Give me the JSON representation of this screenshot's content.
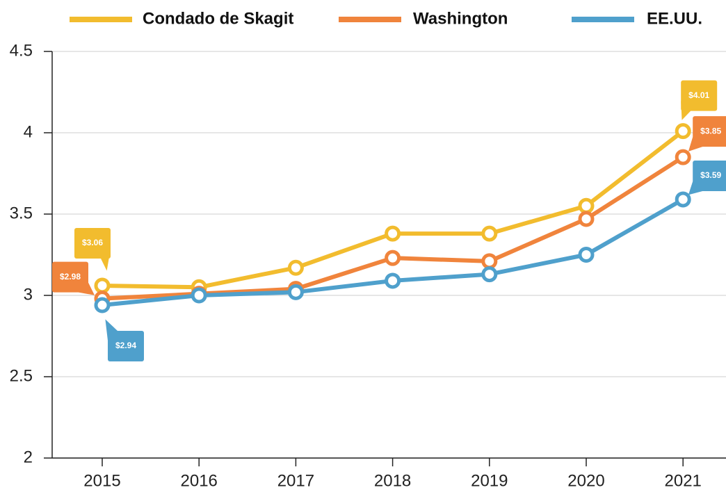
{
  "chart_data": {
    "type": "line",
    "categories": [
      "2015",
      "2016",
      "2017",
      "2018",
      "2019",
      "2020",
      "2021"
    ],
    "series": [
      {
        "name": "Condado de Skagit",
        "color": "#f2bc2e",
        "values": [
          3.06,
          3.05,
          3.17,
          3.38,
          3.38,
          3.55,
          4.01
        ],
        "value_labels": [
          "$3.06",
          null,
          null,
          null,
          null,
          null,
          "$4.01"
        ]
      },
      {
        "name": "Washington",
        "color": "#f0843c",
        "values": [
          2.98,
          3.01,
          3.04,
          3.23,
          3.21,
          3.47,
          3.85
        ],
        "value_labels": [
          "$2.98",
          null,
          null,
          null,
          null,
          null,
          "$3.85"
        ]
      },
      {
        "name": "EE.UU.",
        "color": "#4fa0cc",
        "values": [
          2.94,
          3.0,
          3.02,
          3.09,
          3.13,
          3.25,
          3.59
        ],
        "value_labels": [
          "$2.94",
          null,
          null,
          null,
          null,
          null,
          "$3.59"
        ]
      }
    ],
    "ylim": [
      2,
      4.5
    ],
    "yticks": [
      2,
      2.5,
      3,
      3.5,
      4,
      4.5
    ],
    "grid": true,
    "legend": "top"
  }
}
